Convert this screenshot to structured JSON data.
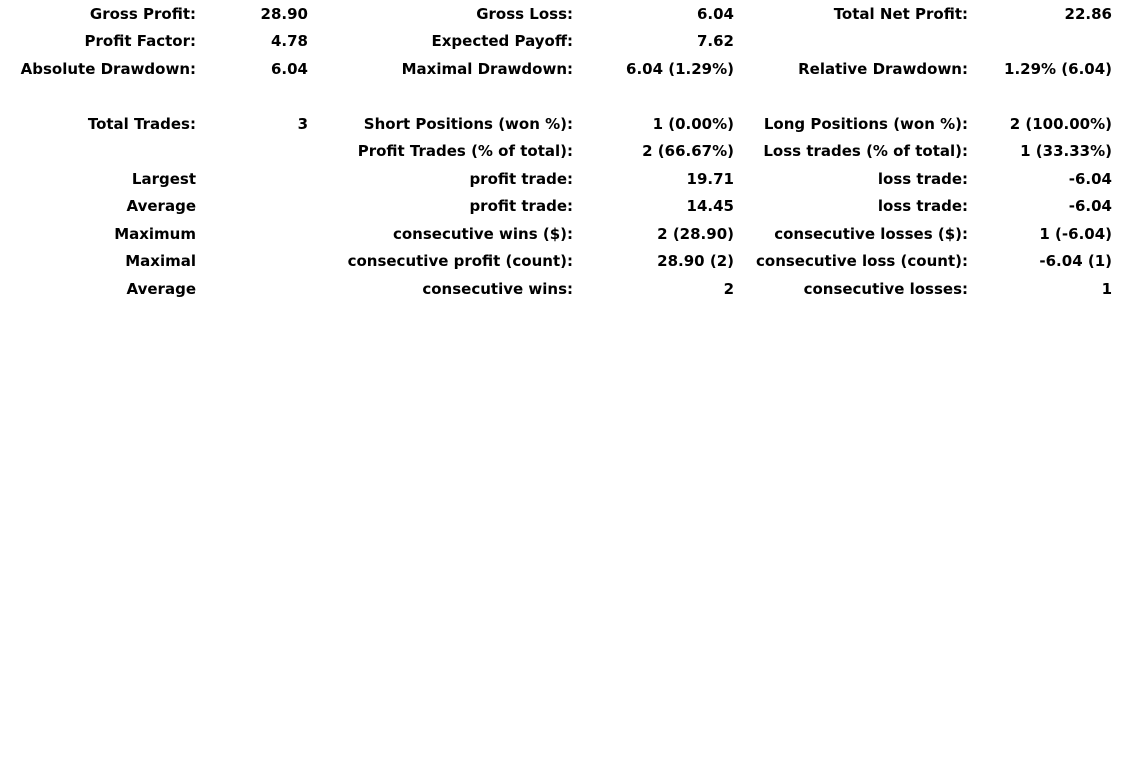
{
  "page": {
    "background_color": "#ffffff",
    "text_color": "#000000"
  },
  "report": {
    "rows": [
      {
        "cells": [
          "Gross Profit:",
          "28.90",
          "Gross Loss:",
          "6.04",
          "Total Net Profit:",
          "22.86"
        ]
      },
      {
        "cells": [
          "Profit Factor:",
          "4.78",
          "Expected Payoff:",
          "7.62",
          "",
          ""
        ]
      },
      {
        "cells": [
          "Absolute Drawdown:",
          "6.04",
          "Maximal Drawdown:",
          "6.04 (1.29%)",
          "Relative Drawdown:",
          "1.29% (6.04)"
        ]
      },
      {
        "cells": [
          "",
          "",
          "",
          "",
          "",
          ""
        ]
      },
      {
        "cells": [
          "Total Trades:",
          "3",
          "Short Positions (won %):",
          "1 (0.00%)",
          "Long Positions (won %):",
          "2 (100.00%)"
        ]
      },
      {
        "cells": [
          "",
          "",
          "Profit Trades (% of total):",
          "2 (66.67%)",
          "Loss trades (% of total):",
          "1 (33.33%)"
        ]
      },
      {
        "cells": [
          "Largest",
          "",
          "profit trade:",
          "19.71",
          "loss trade:",
          "-6.04"
        ]
      },
      {
        "cells": [
          "Average",
          "",
          "profit trade:",
          "14.45",
          "loss trade:",
          "-6.04"
        ]
      },
      {
        "cells": [
          "Maximum",
          "",
          "consecutive wins ($):",
          "2 (28.90)",
          "consecutive losses ($):",
          "1 (-6.04)"
        ]
      },
      {
        "cells": [
          "Maximal",
          "",
          "consecutive profit (count):",
          "28.90 (2)",
          "consecutive loss (count):",
          "-6.04 (1)"
        ]
      },
      {
        "cells": [
          "Average",
          "",
          "consecutive wins:",
          "2",
          "consecutive losses:",
          "1"
        ]
      }
    ]
  }
}
